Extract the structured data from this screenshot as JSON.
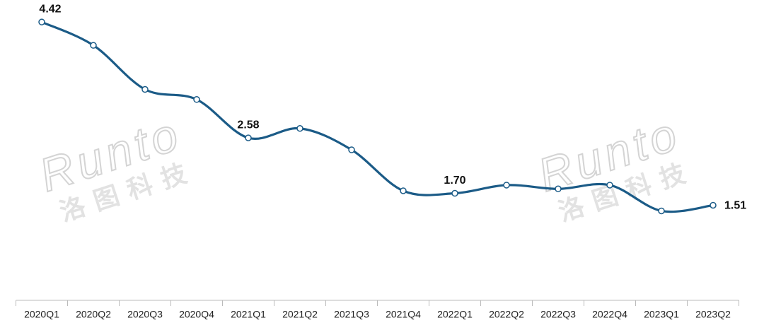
{
  "chart_data": {
    "type": "line",
    "watermark": [
      "Runto",
      "洛图科技"
    ],
    "categories": [
      "2020Q1",
      "2020Q2",
      "2020Q3",
      "2020Q4",
      "2021Q1",
      "2021Q2",
      "2021Q3",
      "2021Q4",
      "2022Q1",
      "2022Q2",
      "2022Q3",
      "2022Q4",
      "2023Q1",
      "2023Q2"
    ],
    "values": [
      4.42,
      4.05,
      3.35,
      3.19,
      2.58,
      2.73,
      2.39,
      1.74,
      1.7,
      1.83,
      1.77,
      1.83,
      1.42,
      1.51
    ],
    "value_labels": [
      "4.42",
      null,
      null,
      null,
      "2.58",
      null,
      null,
      null,
      "1.70",
      null,
      null,
      null,
      null,
      "1.51"
    ],
    "color": "#1b5b87",
    "ylim": [
      0,
      4.77
    ]
  }
}
